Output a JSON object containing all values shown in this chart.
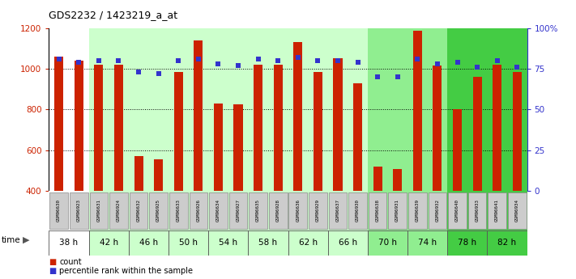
{
  "title": "GDS2232 / 1423219_a_at",
  "samples": [
    "GSM96630",
    "GSM96923",
    "GSM96631",
    "GSM96924",
    "GSM96632",
    "GSM96925",
    "GSM96633",
    "GSM96926",
    "GSM96634",
    "GSM96927",
    "GSM96635",
    "GSM96928",
    "GSM96636",
    "GSM96929",
    "GSM96637",
    "GSM96930",
    "GSM96638",
    "GSM96931",
    "GSM96639",
    "GSM96932",
    "GSM96640",
    "GSM96933",
    "GSM96641",
    "GSM96934"
  ],
  "counts": [
    1060,
    1040,
    1020,
    1020,
    570,
    555,
    985,
    1140,
    830,
    825,
    1020,
    1020,
    1130,
    985,
    1050,
    930,
    520,
    510,
    1185,
    1015,
    800,
    960,
    1020,
    985
  ],
  "percentile_ranks": [
    81,
    79,
    80,
    80,
    73,
    72,
    80,
    81,
    78,
    77,
    81,
    80,
    82,
    80,
    80,
    79,
    70,
    70,
    81,
    78,
    79,
    76,
    80,
    76
  ],
  "time_groups": [
    {
      "label": "38 h",
      "color": "#ffffff",
      "start": 0,
      "end": 2
    },
    {
      "label": "42 h",
      "color": "#ccffcc",
      "start": 2,
      "end": 4
    },
    {
      "label": "46 h",
      "color": "#ccffcc",
      "start": 4,
      "end": 6
    },
    {
      "label": "50 h",
      "color": "#ccffcc",
      "start": 6,
      "end": 8
    },
    {
      "label": "54 h",
      "color": "#ccffcc",
      "start": 8,
      "end": 10
    },
    {
      "label": "58 h",
      "color": "#ccffcc",
      "start": 10,
      "end": 12
    },
    {
      "label": "62 h",
      "color": "#ccffcc",
      "start": 12,
      "end": 14
    },
    {
      "label": "66 h",
      "color": "#ccffcc",
      "start": 14,
      "end": 16
    },
    {
      "label": "70 h",
      "color": "#90ee90",
      "start": 16,
      "end": 18
    },
    {
      "label": "74 h",
      "color": "#90ee90",
      "start": 18,
      "end": 20
    },
    {
      "label": "78 h",
      "color": "#44cc44",
      "start": 20,
      "end": 22
    },
    {
      "label": "82 h",
      "color": "#44cc44",
      "start": 22,
      "end": 24
    }
  ],
  "bar_color": "#cc2200",
  "dot_color": "#3333cc",
  "ylim_left": [
    400,
    1200
  ],
  "ylim_right": [
    0,
    100
  ],
  "yticks_left": [
    400,
    600,
    800,
    1000,
    1200
  ],
  "yticks_right": [
    0,
    25,
    50,
    75,
    100
  ],
  "ytick_labels_right": [
    "0",
    "25",
    "50",
    "75",
    "100%"
  ],
  "gridlines": [
    600,
    800,
    1000
  ],
  "bg_color": "#ffffff",
  "sample_bg_color": "#cccccc",
  "sample_border_color": "#888888"
}
